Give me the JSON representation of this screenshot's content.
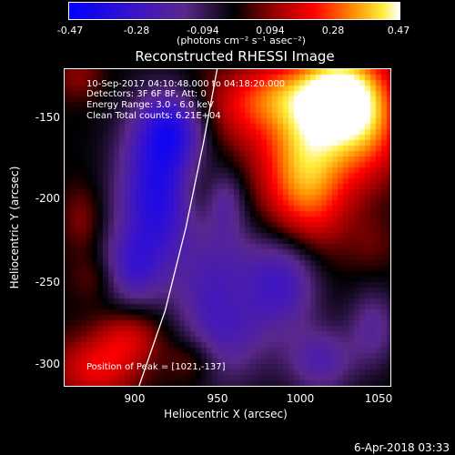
{
  "colorbar": {
    "tick_labels": [
      "-0.47",
      "-0.28",
      "-0.094",
      "0.094",
      "0.28",
      "0.47"
    ],
    "units_label": "(photons cm⁻² s⁻¹ asec⁻²)"
  },
  "chart_data": {
    "type": "heatmap",
    "title": "Reconstructed RHESSI Image",
    "xlabel": "Heliocentric X (arcsec)",
    "ylabel": "Heliocentric Y (arcsec)",
    "xlim": [
      862,
      1050
    ],
    "ylim": [
      -315,
      -125
    ],
    "x_ticks": [
      900,
      950,
      1000,
      1050
    ],
    "y_ticks": [
      -150,
      -200,
      -250,
      -300
    ],
    "color_range": [
      -0.47,
      0.47
    ],
    "colormap": "blue-purple-black-red-orange-yellow-white",
    "limb_curve": [
      [
        905,
        -315
      ],
      [
        920,
        -270
      ],
      [
        932,
        -220
      ],
      [
        942,
        -170
      ],
      [
        950,
        -125
      ]
    ],
    "peak_x": 1021,
    "peak_y": -137,
    "blobs": [
      {
        "x": 1020,
        "y": -140,
        "value": 0.47,
        "sx": 18,
        "sy": 20
      },
      {
        "x": 1003,
        "y": -175,
        "value": 0.3,
        "sx": 20,
        "sy": 22
      },
      {
        "x": 1000,
        "y": -210,
        "value": 0.22,
        "sx": 18,
        "sy": 22
      },
      {
        "x": 1040,
        "y": -160,
        "value": 0.2,
        "sx": 14,
        "sy": 24
      },
      {
        "x": 960,
        "y": -150,
        "value": 0.14,
        "sx": 22,
        "sy": 18
      },
      {
        "x": 985,
        "y": -140,
        "value": 0.18,
        "sx": 18,
        "sy": 14
      },
      {
        "x": 880,
        "y": -305,
        "value": 0.2,
        "sx": 18,
        "sy": 14
      },
      {
        "x": 900,
        "y": -285,
        "value": 0.16,
        "sx": 14,
        "sy": 12
      },
      {
        "x": 935,
        "y": -300,
        "value": 0.11,
        "sx": 10,
        "sy": 10
      },
      {
        "x": 870,
        "y": -130,
        "value": 0.1,
        "sx": 10,
        "sy": 10
      },
      {
        "x": 872,
        "y": -215,
        "value": 0.1,
        "sx": 8,
        "sy": 14
      },
      {
        "x": 880,
        "y": -250,
        "value": 0.08,
        "sx": 10,
        "sy": 10
      },
      {
        "x": 960,
        "y": -260,
        "value": 0.08,
        "sx": 10,
        "sy": 14
      },
      {
        "x": 1040,
        "y": -230,
        "value": 0.06,
        "sx": 10,
        "sy": 12
      },
      {
        "x": 940,
        "y": -200,
        "value": 0.07,
        "sx": 8,
        "sy": 14
      },
      {
        "x": 915,
        "y": -200,
        "value": -0.36,
        "sx": 16,
        "sy": 32
      },
      {
        "x": 925,
        "y": -160,
        "value": -0.28,
        "sx": 14,
        "sy": 16
      },
      {
        "x": 955,
        "y": -265,
        "value": -0.3,
        "sx": 18,
        "sy": 30
      },
      {
        "x": 990,
        "y": -250,
        "value": -0.24,
        "sx": 14,
        "sy": 22
      },
      {
        "x": 900,
        "y": -245,
        "value": -0.2,
        "sx": 12,
        "sy": 16
      },
      {
        "x": 1010,
        "y": -300,
        "value": -0.2,
        "sx": 14,
        "sy": 14
      },
      {
        "x": 1040,
        "y": -280,
        "value": -0.16,
        "sx": 10,
        "sy": 16
      },
      {
        "x": 955,
        "y": -205,
        "value": -0.14,
        "sx": 8,
        "sy": 14
      }
    ]
  },
  "info": {
    "line1": "10-Sep-2017 04:10:48.000 to 04:18:20.000",
    "line2": "Detectors: 3F 6F 8F, Att: 0",
    "line3": "Energy Range: 3.0 - 6.0 keV",
    "line4": "Clean     Total counts: 6.21E+04"
  },
  "peak_label": "Position of Peak = [1021,-137]",
  "timestamp": "6-Apr-2018 03:33"
}
